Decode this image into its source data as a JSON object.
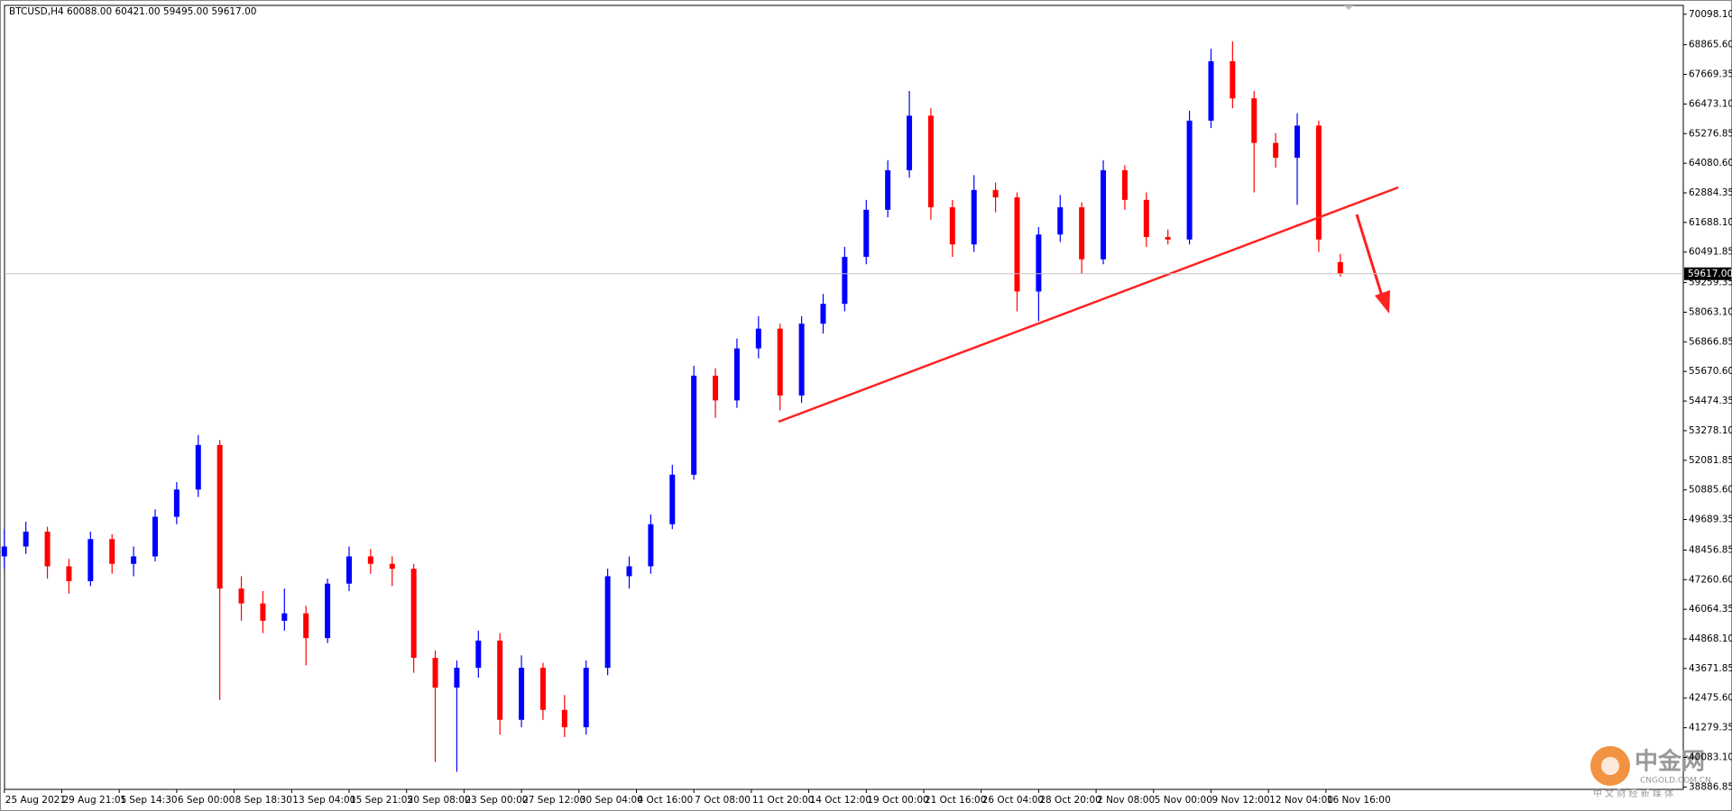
{
  "chart_data": {
    "type": "candlestick",
    "title": "BTCUSD,H4  60088.00 60421.00 59495.00 59617.00",
    "x": [
      0,
      6,
      12,
      18,
      24,
      30,
      36,
      42,
      48,
      54,
      60,
      66,
      72,
      78,
      84,
      90,
      96,
      102,
      108,
      114,
      120,
      126,
      132,
      138,
      144,
      150,
      156,
      162,
      168,
      174,
      180,
      186,
      192,
      198,
      204,
      210,
      216,
      222,
      228,
      234,
      240,
      246,
      252,
      258,
      264,
      270,
      276,
      282,
      288,
      294,
      300,
      306,
      312,
      318,
      324,
      330,
      336,
      342,
      348,
      354,
      360,
      366,
      372
    ],
    "open": [
      48200,
      48600,
      49200,
      47800,
      47200,
      48900,
      47900,
      48200,
      49800,
      50900,
      52700,
      46900,
      46300,
      45600,
      45900,
      44900,
      47100,
      48200,
      47900,
      47700,
      44100,
      42900,
      43700,
      44800,
      41600,
      43700,
      42000,
      41300,
      43700,
      47400,
      47800,
      49500,
      51500,
      55500,
      54500,
      56600,
      57400,
      54700,
      57600,
      58400,
      60300,
      62200,
      63800,
      66000,
      62300,
      60800,
      63000,
      62700,
      58900,
      61200,
      62300,
      60200,
      63800,
      62600,
      61100,
      61000,
      65800,
      68200,
      66700,
      64900,
      64300,
      65600,
      60088
    ],
    "high": [
      49300,
      49600,
      49400,
      48100,
      49200,
      49100,
      48600,
      50100,
      51200,
      53100,
      52900,
      47400,
      46800,
      46900,
      46200,
      47300,
      48600,
      48500,
      48200,
      47900,
      44400,
      44000,
      45200,
      45100,
      44200,
      43900,
      42600,
      44000,
      47700,
      48200,
      49900,
      51900,
      55900,
      55800,
      57000,
      57900,
      57600,
      57900,
      58800,
      60700,
      62600,
      64200,
      67000,
      66300,
      62600,
      63600,
      63300,
      62900,
      61500,
      62800,
      62500,
      64200,
      64000,
      62900,
      61400,
      66200,
      68700,
      69000,
      67000,
      65300,
      66100,
      65800,
      60421
    ],
    "low": [
      47700,
      48300,
      47300,
      46700,
      47000,
      47500,
      47400,
      48000,
      49500,
      50600,
      42400,
      45600,
      45100,
      45200,
      43800,
      44700,
      46800,
      47500,
      47000,
      43500,
      39900,
      39500,
      43300,
      41000,
      41300,
      41600,
      40900,
      41000,
      43400,
      46900,
      47500,
      49300,
      51300,
      53800,
      54200,
      56200,
      54100,
      54400,
      57200,
      58100,
      60000,
      61900,
      63500,
      61800,
      60300,
      60500,
      62100,
      58100,
      57700,
      60900,
      59600,
      60000,
      62200,
      60700,
      60800,
      60800,
      65500,
      66300,
      62900,
      63900,
      62400,
      60500,
      59495
    ],
    "close": [
      48600,
      49200,
      47800,
      47200,
      48900,
      47900,
      48200,
      49800,
      50900,
      52700,
      46900,
      46300,
      45600,
      45900,
      44900,
      47100,
      48200,
      47900,
      47700,
      44100,
      42900,
      43700,
      44800,
      41600,
      43700,
      42000,
      41300,
      43700,
      47400,
      47800,
      49500,
      51500,
      55500,
      54500,
      56600,
      57400,
      54700,
      57600,
      58400,
      60300,
      62200,
      63800,
      66000,
      62300,
      60800,
      63000,
      62700,
      58900,
      61200,
      62300,
      60200,
      63800,
      62600,
      61100,
      61000,
      65800,
      68200,
      66700,
      64900,
      64300,
      65600,
      61000,
      59617
    ],
    "up_color": "#0000ff",
    "down_color": "#ff0000",
    "xlim": [
      -1.2,
      467.5
    ],
    "xticks": [
      {
        "value": 0,
        "label": "25 Aug 2021"
      },
      {
        "value": 16,
        "label": "29 Aug 21:05"
      },
      {
        "value": 32,
        "label": "1 Sep 14:30"
      },
      {
        "value": 48,
        "label": "6 Sep 00:00"
      },
      {
        "value": 64,
        "label": "8 Sep 18:30"
      },
      {
        "value": 80,
        "label": "13 Sep 04:00"
      },
      {
        "value": 96,
        "label": "15 Sep 21:05"
      },
      {
        "value": 112,
        "label": "20 Sep 08:00"
      },
      {
        "value": 128,
        "label": "23 Sep 00:00"
      },
      {
        "value": 144,
        "label": "27 Sep 12:00"
      },
      {
        "value": 160,
        "label": "30 Sep 04:00"
      },
      {
        "value": 176,
        "label": "4 Oct 16:00"
      },
      {
        "value": 192,
        "label": "7 Oct 08:00"
      },
      {
        "value": 208,
        "label": "11 Oct 20:00"
      },
      {
        "value": 224,
        "label": "14 Oct 12:00"
      },
      {
        "value": 240,
        "label": "19 Oct 00:00"
      },
      {
        "value": 256,
        "label": "21 Oct 16:00"
      },
      {
        "value": 272,
        "label": "26 Oct 04:00"
      },
      {
        "value": 288,
        "label": "28 Oct 20:00"
      },
      {
        "value": 304,
        "label": "2 Nov 08:00"
      },
      {
        "value": 320,
        "label": "5 Nov 00:00"
      },
      {
        "value": 336,
        "label": "9 Nov 12:00"
      },
      {
        "value": 352,
        "label": "12 Nov 04:00"
      },
      {
        "value": 368,
        "label": "16 Nov 16:00"
      }
    ],
    "ylim": [
      38790,
      70455
    ],
    "yticks": [
      {
        "value": 70098.1,
        "label": "70098.10"
      },
      {
        "value": 68865.6,
        "label": "68865.60"
      },
      {
        "value": 67669.35,
        "label": "67669.35"
      },
      {
        "value": 66473.1,
        "label": "66473.10"
      },
      {
        "value": 65276.85,
        "label": "65276.85"
      },
      {
        "value": 64080.6,
        "label": "64080.60"
      },
      {
        "value": 62884.35,
        "label": "62884.35"
      },
      {
        "value": 61688.1,
        "label": "61688.10"
      },
      {
        "value": 60491.85,
        "label": "60491.85"
      },
      {
        "value": 59259.35,
        "label": "59259.35"
      },
      {
        "value": 58063.1,
        "label": "58063.10"
      },
      {
        "value": 56866.85,
        "label": "56866.85"
      },
      {
        "value": 55670.6,
        "label": "55670.60"
      },
      {
        "value": 54474.35,
        "label": "54474.35"
      },
      {
        "value": 53278.1,
        "label": "53278.10"
      },
      {
        "value": 52081.85,
        "label": "52081.85"
      },
      {
        "value": 50885.6,
        "label": "50885.60"
      },
      {
        "value": 49689.35,
        "label": "49689.35"
      },
      {
        "value": 48456.85,
        "label": "48456.85"
      },
      {
        "value": 47260.6,
        "label": "47260.60"
      },
      {
        "value": 46064.35,
        "label": "46064.35"
      },
      {
        "value": 44868.1,
        "label": "44868.10"
      },
      {
        "value": 43671.85,
        "label": "43671.85"
      },
      {
        "value": 42475.6,
        "label": "42475.60"
      },
      {
        "value": 41279.35,
        "label": "41279.35"
      },
      {
        "value": 40083.1,
        "label": "40083.10"
      },
      {
        "value": 38886.85,
        "label": "38886.85"
      }
    ],
    "price_line": {
      "value": 59617,
      "label": "59617.00"
    },
    "grid": false
  },
  "watermark": {
    "name": "中金网",
    "url": "CNGOLD.COM.CN",
    "slogan": "中 文 财 经 新 媒 体"
  }
}
